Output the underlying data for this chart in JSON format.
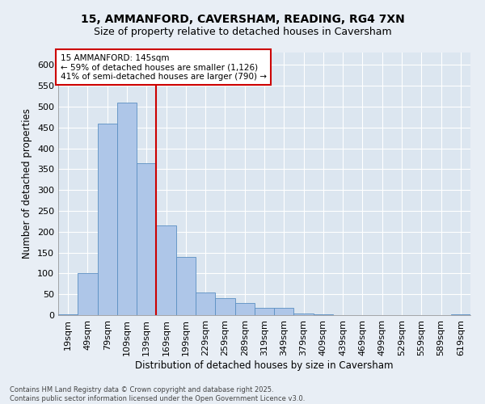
{
  "title_line1": "15, AMMANFORD, CAVERSHAM, READING, RG4 7XN",
  "title_line2": "Size of property relative to detached houses in Caversham",
  "xlabel": "Distribution of detached houses by size in Caversham",
  "ylabel": "Number of detached properties",
  "categories": [
    "19sqm",
    "49sqm",
    "79sqm",
    "109sqm",
    "139sqm",
    "169sqm",
    "199sqm",
    "229sqm",
    "259sqm",
    "289sqm",
    "319sqm",
    "349sqm",
    "379sqm",
    "409sqm",
    "439sqm",
    "469sqm",
    "499sqm",
    "529sqm",
    "559sqm",
    "589sqm",
    "619sqm"
  ],
  "values": [
    2,
    100,
    460,
    510,
    365,
    215,
    140,
    55,
    40,
    30,
    18,
    18,
    4,
    2,
    0,
    0,
    0,
    0,
    0,
    0,
    2
  ],
  "bar_color": "#aec6e8",
  "bar_edge_color": "#5a8fc2",
  "annotation_text": "15 AMMANFORD: 145sqm\n← 59% of detached houses are smaller (1,126)\n41% of semi-detached houses are larger (790) →",
  "annotation_box_color": "#ffffff",
  "annotation_box_edge_color": "#cc0000",
  "vline_color": "#cc0000",
  "vline_x": 4.5,
  "ylim": [
    0,
    630
  ],
  "yticks": [
    0,
    50,
    100,
    150,
    200,
    250,
    300,
    350,
    400,
    450,
    500,
    550,
    600
  ],
  "background_color": "#e8eef5",
  "plot_bg_color": "#dce6f0",
  "grid_color": "#ffffff",
  "footnote": "Contains HM Land Registry data © Crown copyright and database right 2025.\nContains public sector information licensed under the Open Government Licence v3.0.",
  "title_fontsize": 10,
  "subtitle_fontsize": 9,
  "axis_label_fontsize": 8.5,
  "tick_fontsize": 8,
  "footnote_fontsize": 6,
  "annotation_fontsize": 7.5
}
